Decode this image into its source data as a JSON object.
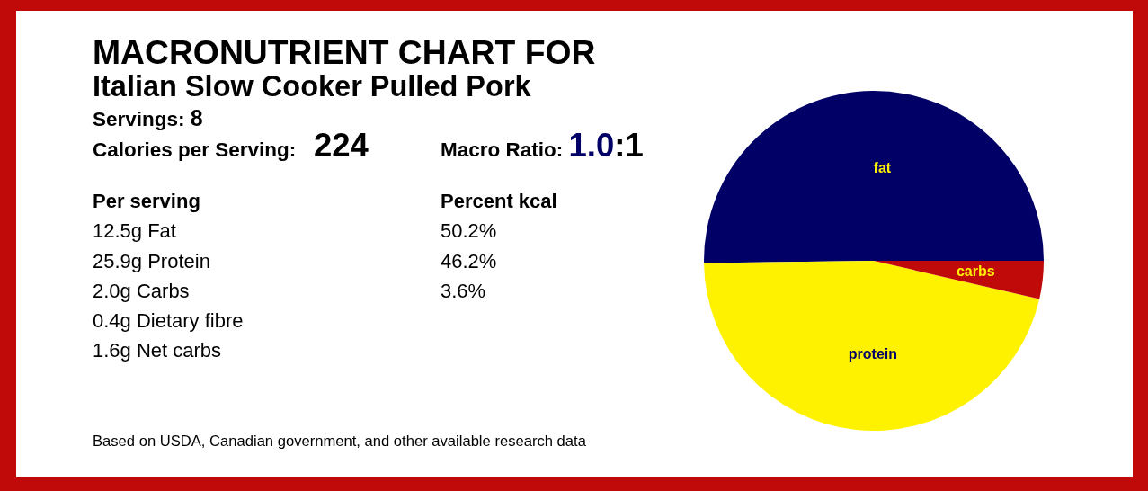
{
  "chart_data": {
    "type": "pie",
    "title": "MACRONUTRIENT CHART FOR",
    "subtitle": "Italian Slow Cooker Pulled Pork",
    "categories": [
      "fat",
      "protein",
      "carbs"
    ],
    "values": [
      50.2,
      46.2,
      3.6
    ],
    "colors": [
      "#000066",
      "#fff200",
      "#c00a0a"
    ],
    "annotations": [
      "Servings: 8",
      "Calories per Serving: 224",
      "Macro Ratio: 1.0:1",
      "Per serving",
      "12.5g Fat",
      "25.9g Protein",
      "2.0g Carbs",
      "0.4g Dietary fibre",
      "1.6g Net carbs",
      "Percent kcal",
      "50.2%",
      "46.2%",
      "3.6%",
      "Based on USDA, Canadian government, and other available research data"
    ]
  }
}
